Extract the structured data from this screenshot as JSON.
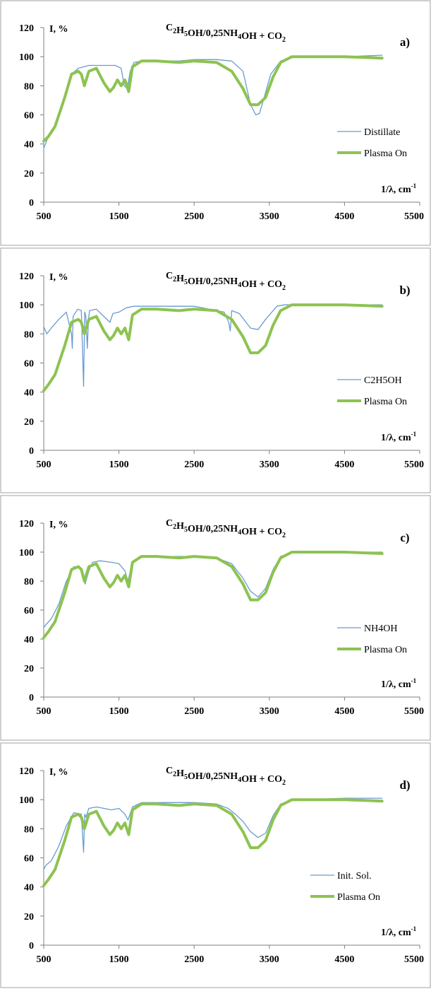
{
  "figure": {
    "title_parts": {
      "c2": "C",
      "h5": "H",
      "sub5": "5",
      "oh": "OH/0,25NH",
      "sub4": "4",
      "oh_plus": "OH + CO",
      "sub2": "2"
    },
    "y_axis_label": "I, %",
    "x_axis_label": "1/λ, cm",
    "x_axis_label_sup": "-1",
    "colors": {
      "thin_series": "#6a9bd1",
      "plasma_series": "#8dc351",
      "axis": "#7f7f7f",
      "frame": "#a0a0a0"
    }
  },
  "chart_data": [
    {
      "type": "line",
      "panel": "a)",
      "title": "C2H5OH/0,25NH4OH + CO2",
      "xlim": [
        500,
        5500
      ],
      "ylim": [
        0,
        120
      ],
      "x_ticks": [
        "500",
        "1500",
        "2500",
        "3500",
        "4500",
        "5500"
      ],
      "y_ticks": [
        "0",
        "20",
        "40",
        "60",
        "80",
        "100",
        "120"
      ],
      "series": [
        {
          "name": "Distillate",
          "x": [
            500,
            560,
            650,
            780,
            870,
            960,
            1100,
            1200,
            1450,
            1530,
            1570,
            1610,
            1650,
            1700,
            1800,
            2000,
            2300,
            2500,
            2800,
            3000,
            3150,
            3250,
            3320,
            3370,
            3420,
            3520,
            3650,
            3800,
            4000,
            4500,
            5000
          ],
          "y": [
            37,
            45,
            52,
            72,
            88,
            92,
            94,
            94,
            94,
            92,
            80,
            78,
            90,
            96,
            97,
            97,
            97,
            98,
            98,
            97,
            90,
            67,
            60,
            61,
            70,
            88,
            97,
            100,
            100,
            100,
            101
          ]
        },
        {
          "name": "Plasma On",
          "x": [
            500,
            560,
            650,
            780,
            870,
            960,
            1000,
            1040,
            1100,
            1200,
            1300,
            1380,
            1430,
            1480,
            1530,
            1580,
            1630,
            1680,
            1800,
            2000,
            2300,
            2500,
            2800,
            3000,
            3150,
            3250,
            3350,
            3450,
            3550,
            3650,
            3800,
            4000,
            4500,
            5000
          ],
          "y": [
            42,
            45,
            52,
            72,
            88,
            90,
            88,
            80,
            90,
            92,
            82,
            76,
            79,
            84,
            80,
            84,
            76,
            93,
            97,
            97,
            96,
            97,
            96,
            90,
            78,
            67,
            67,
            72,
            86,
            96,
            100,
            100,
            100,
            99
          ]
        }
      ]
    },
    {
      "type": "line",
      "panel": "b)",
      "title": "C2H5OH/0,25NH4OH + CO2",
      "xlim": [
        500,
        5500
      ],
      "ylim": [
        0,
        120
      ],
      "x_ticks": [
        "500",
        "1500",
        "2500",
        "3500",
        "4500",
        "5500"
      ],
      "y_ticks": [
        "0",
        "20",
        "40",
        "60",
        "80",
        "100",
        "120"
      ],
      "series": [
        {
          "name": "C2H5OH",
          "x": [
            500,
            540,
            600,
            700,
            800,
            870,
            880,
            890,
            950,
            1000,
            1030,
            1045,
            1060,
            1080,
            1095,
            1110,
            1200,
            1300,
            1380,
            1420,
            1500,
            1600,
            1700,
            2000,
            2500,
            2900,
            2960,
            2980,
            3000,
            3100,
            3250,
            3350,
            3450,
            3600,
            3700,
            4000,
            4500,
            5000
          ],
          "y": [
            85,
            80,
            84,
            90,
            95,
            80,
            70,
            92,
            97,
            96,
            44,
            95,
            92,
            70,
            90,
            96,
            97,
            92,
            88,
            94,
            95,
            98,
            99,
            99,
            99,
            95,
            88,
            82,
            96,
            94,
            84,
            83,
            90,
            99,
            100,
            100,
            100,
            100
          ]
        },
        {
          "name": "Plasma On",
          "x": [
            500,
            560,
            650,
            780,
            870,
            960,
            1000,
            1040,
            1100,
            1200,
            1300,
            1380,
            1430,
            1480,
            1530,
            1580,
            1630,
            1680,
            1800,
            2000,
            2300,
            2500,
            2800,
            3000,
            3150,
            3250,
            3350,
            3450,
            3550,
            3650,
            3800,
            4000,
            4500,
            5000
          ],
          "y": [
            41,
            45,
            52,
            72,
            88,
            90,
            88,
            80,
            90,
            92,
            82,
            76,
            79,
            84,
            80,
            84,
            76,
            93,
            97,
            97,
            96,
            97,
            96,
            90,
            78,
            67,
            67,
            72,
            86,
            96,
            100,
            100,
            100,
            99
          ]
        }
      ]
    },
    {
      "type": "line",
      "panel": "c)",
      "title": "C2H5OH/0,25NH4OH + CO2",
      "xlim": [
        500,
        5500
      ],
      "ylim": [
        0,
        120
      ],
      "x_ticks": [
        "500",
        "1500",
        "2500",
        "3500",
        "4500",
        "5500"
      ],
      "y_ticks": [
        "0",
        "20",
        "40",
        "60",
        "80",
        "100",
        "120"
      ],
      "series": [
        {
          "name": "NH4OH",
          "x": [
            500,
            530,
            600,
            700,
            800,
            900,
            1000,
            1050,
            1100,
            1150,
            1250,
            1400,
            1500,
            1580,
            1620,
            1680,
            1800,
            2000,
            2500,
            2800,
            3000,
            3150,
            3250,
            3350,
            3450,
            3550,
            3650,
            3800,
            4000,
            4500,
            5000
          ],
          "y": [
            48,
            50,
            54,
            64,
            80,
            90,
            89,
            78,
            87,
            93,
            94,
            93,
            92,
            87,
            80,
            93,
            97,
            97,
            97,
            96,
            92,
            82,
            73,
            69,
            75,
            88,
            97,
            100,
            100,
            100,
            100
          ]
        },
        {
          "name": "Plasma On",
          "x": [
            500,
            560,
            650,
            780,
            870,
            960,
            1000,
            1040,
            1100,
            1200,
            1300,
            1380,
            1430,
            1480,
            1530,
            1580,
            1630,
            1680,
            1800,
            2000,
            2300,
            2500,
            2800,
            3000,
            3150,
            3250,
            3350,
            3450,
            3550,
            3650,
            3800,
            4000,
            4500,
            5000
          ],
          "y": [
            41,
            45,
            52,
            72,
            88,
            90,
            88,
            80,
            90,
            92,
            82,
            76,
            79,
            84,
            80,
            84,
            76,
            93,
            97,
            97,
            96,
            97,
            96,
            90,
            78,
            67,
            67,
            72,
            86,
            96,
            100,
            100,
            100,
            99
          ]
        }
      ]
    },
    {
      "type": "line",
      "panel": "d)",
      "title": "C2H5OH/0,25NH4OH + CO2",
      "xlim": [
        500,
        5500
      ],
      "ylim": [
        0,
        120
      ],
      "x_ticks": [
        "500",
        "1500",
        "2500",
        "3500",
        "4500",
        "5500"
      ],
      "y_ticks": [
        "0",
        "20",
        "40",
        "60",
        "80",
        "100",
        "120"
      ],
      "series": [
        {
          "name": "Init. Sol.",
          "x": [
            500,
            530,
            600,
            700,
            800,
            900,
            1000,
            1030,
            1045,
            1060,
            1100,
            1200,
            1300,
            1400,
            1500,
            1580,
            1620,
            1680,
            1800,
            2000,
            2500,
            2800,
            2950,
            3050,
            3150,
            3250,
            3350,
            3450,
            3550,
            3650,
            3800,
            4000,
            4500,
            5000
          ],
          "y": [
            52,
            55,
            58,
            68,
            82,
            91,
            90,
            64,
            90,
            88,
            94,
            95,
            94,
            93,
            94,
            90,
            86,
            95,
            98,
            98,
            98,
            97,
            94,
            90,
            85,
            78,
            74,
            77,
            89,
            97,
            100,
            100,
            101,
            101
          ]
        },
        {
          "name": "Plasma On",
          "x": [
            500,
            560,
            650,
            780,
            870,
            960,
            1000,
            1040,
            1100,
            1200,
            1300,
            1380,
            1430,
            1480,
            1530,
            1580,
            1630,
            1680,
            1800,
            2000,
            2300,
            2500,
            2800,
            3000,
            3150,
            3250,
            3350,
            3450,
            3550,
            3650,
            3800,
            4000,
            4500,
            5000
          ],
          "y": [
            41,
            45,
            52,
            72,
            88,
            90,
            88,
            80,
            90,
            92,
            82,
            76,
            79,
            84,
            80,
            84,
            76,
            93,
            97,
            97,
            96,
            97,
            96,
            90,
            78,
            67,
            67,
            72,
            86,
            96,
            100,
            100,
            100,
            99
          ]
        }
      ]
    }
  ]
}
